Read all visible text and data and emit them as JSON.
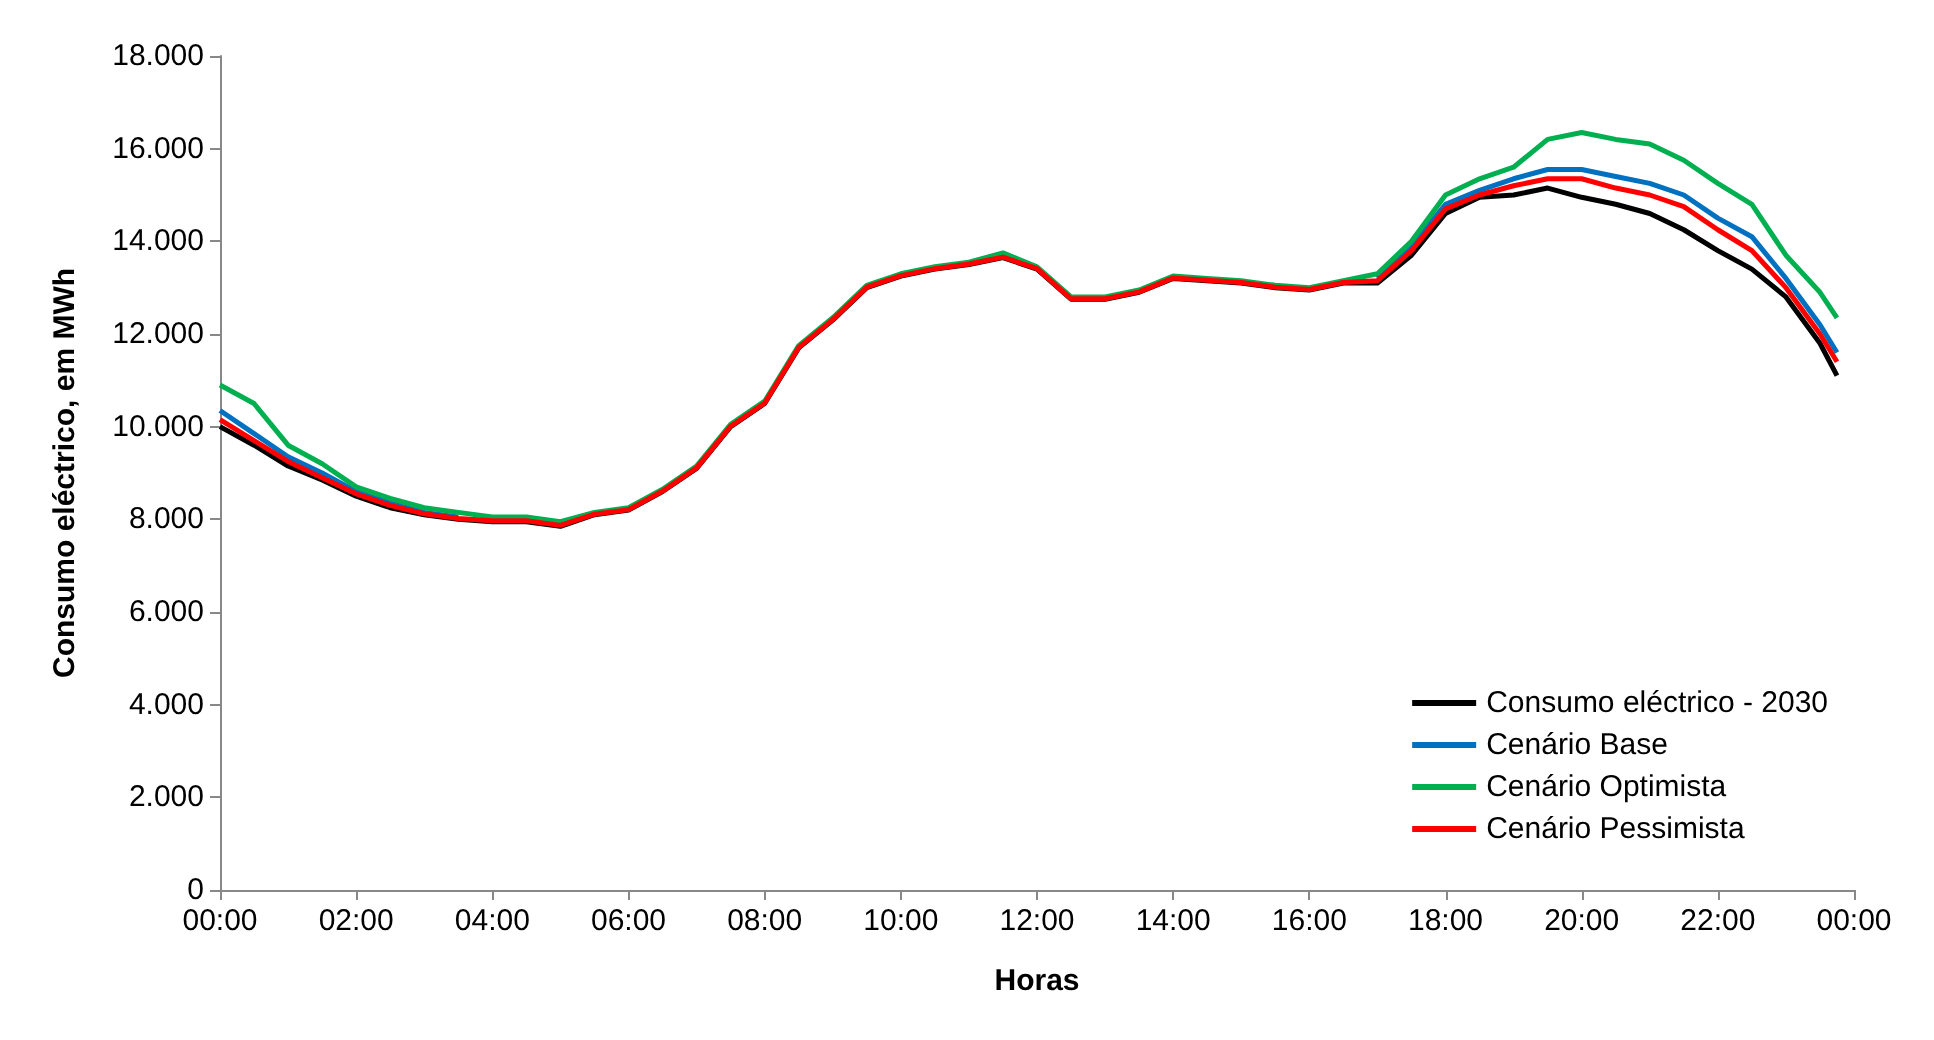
{
  "chart_data": {
    "type": "line",
    "xlabel": "Horas",
    "ylabel": "Consumo eléctrico, em MWh",
    "x": [
      0,
      0.5,
      1,
      1.5,
      2,
      2.5,
      3,
      3.5,
      4,
      4.5,
      5,
      5.5,
      6,
      6.5,
      7,
      7.5,
      8,
      8.5,
      9,
      9.5,
      10,
      10.5,
      11,
      11.5,
      12,
      12.5,
      13,
      13.5,
      14,
      14.5,
      15,
      15.5,
      16,
      16.5,
      17,
      17.5,
      18,
      18.5,
      19,
      19.5,
      20,
      20.5,
      21,
      21.5,
      22,
      22.5,
      23,
      23.5,
      23.75
    ],
    "series": [
      {
        "name": "Consumo eléctrico - 2030",
        "color": "#000000",
        "values": [
          10000,
          9600,
          9150,
          8850,
          8500,
          8250,
          8100,
          8000,
          7950,
          7950,
          7850,
          8100,
          8200,
          8600,
          9100,
          10000,
          10500,
          11700,
          12300,
          13000,
          13250,
          13400,
          13500,
          13650,
          13400,
          12750,
          12750,
          12900,
          13200,
          13150,
          13100,
          13000,
          12950,
          13100,
          13100,
          13700,
          14600,
          14950,
          15000,
          15150,
          14950,
          14800,
          14600,
          14250,
          13800,
          13400,
          12800,
          11800,
          11100
        ]
      },
      {
        "name": "Cenário Base",
        "color": "#0070c0",
        "values": [
          10350,
          9850,
          9350,
          9000,
          8600,
          8350,
          8150,
          8050,
          null,
          null,
          null,
          null,
          null,
          null,
          null,
          null,
          null,
          null,
          null,
          null,
          null,
          null,
          null,
          null,
          null,
          null,
          null,
          null,
          null,
          null,
          null,
          null,
          null,
          null,
          13200,
          13900,
          14800,
          15100,
          15350,
          15550,
          15550,
          15400,
          15250,
          15000,
          14500,
          14100,
          13200,
          12200,
          11600
        ]
      },
      {
        "name": "Cenário Optimista",
        "color": "#00b050",
        "values": [
          10900,
          10500,
          9600,
          9200,
          8700,
          8450,
          8250,
          8150,
          8050,
          8050,
          7950,
          8150,
          8250,
          8650,
          9150,
          10050,
          10550,
          11750,
          12350,
          13050,
          13300,
          13450,
          13550,
          13750,
          13450,
          12800,
          12800,
          12950,
          13250,
          13200,
          13150,
          13050,
          13000,
          13150,
          13300,
          14000,
          15000,
          15350,
          15600,
          16200,
          16350,
          16200,
          16100,
          15750,
          15250,
          14800,
          13700,
          12900,
          12350
        ]
      },
      {
        "name": "Cenário Pessimista",
        "color": "#ff0000",
        "values": [
          10150,
          9700,
          9250,
          8900,
          8550,
          8300,
          8120,
          8020,
          7970,
          7970,
          7870,
          8110,
          8210,
          8610,
          9110,
          10010,
          10510,
          11710,
          12310,
          13010,
          13260,
          13410,
          13510,
          13660,
          13410,
          12760,
          12760,
          12910,
          13210,
          13160,
          13110,
          13010,
          12960,
          13110,
          13150,
          13800,
          14700,
          15000,
          15200,
          15350,
          15350,
          15150,
          15000,
          14750,
          14250,
          13800,
          13000,
          12000,
          11400
        ]
      }
    ],
    "xlim": [
      0,
      24
    ],
    "xticks": [
      {
        "value": 0,
        "label": "00:00"
      },
      {
        "value": 2,
        "label": "02:00"
      },
      {
        "value": 4,
        "label": "04:00"
      },
      {
        "value": 6,
        "label": "06:00"
      },
      {
        "value": 8,
        "label": "08:00"
      },
      {
        "value": 10,
        "label": "10:00"
      },
      {
        "value": 12,
        "label": "12:00"
      },
      {
        "value": 14,
        "label": "14:00"
      },
      {
        "value": 16,
        "label": "16:00"
      },
      {
        "value": 18,
        "label": "18:00"
      },
      {
        "value": 20,
        "label": "20:00"
      },
      {
        "value": 22,
        "label": "22:00"
      },
      {
        "value": 24,
        "label": "00:00"
      }
    ],
    "ylim": [
      0,
      18000
    ],
    "yticks": [
      0,
      {
        "value": 2000,
        "label": "2.000"
      },
      {
        "value": 4000,
        "label": "4.000"
      },
      {
        "value": 6000,
        "label": "6.000"
      },
      {
        "value": 8000,
        "label": "8.000"
      },
      {
        "value": 10000,
        "label": "10.000"
      },
      {
        "value": 12000,
        "label": "12.000"
      },
      {
        "value": 14000,
        "label": "14.000"
      },
      {
        "value": 16000,
        "label": "16.000"
      },
      {
        "value": 18000,
        "label": "18.000"
      }
    ],
    "grid": false,
    "legend": "bottom right",
    "marker": "none",
    "line_style": "solid"
  }
}
